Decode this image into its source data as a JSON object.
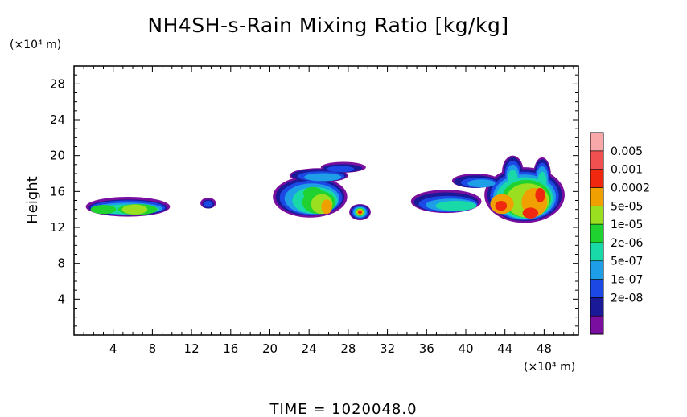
{
  "chart_data": {
    "type": "heatmap",
    "title": "NH4SH-s-Rain Mixing Ratio [kg/kg]",
    "xlabel": "",
    "ylabel": "Height",
    "x_unit": "(×10⁴ m)",
    "y_unit": "(×10⁴ m)",
    "xlim": [
      0,
      51.5
    ],
    "ylim": [
      0,
      30
    ],
    "x_ticks": [
      "4",
      "8",
      "12",
      "16",
      "20",
      "24",
      "28",
      "32",
      "36",
      "40",
      "44",
      "48"
    ],
    "y_ticks": [
      "4",
      "8",
      "12",
      "16",
      "20",
      "24",
      "28"
    ],
    "x_tick_values": [
      4,
      8,
      12,
      16,
      20,
      24,
      28,
      32,
      36,
      40,
      44,
      48
    ],
    "y_tick_values": [
      4,
      8,
      12,
      16,
      20,
      24,
      28
    ],
    "colorbar": {
      "labels": [
        "0.005",
        "0.001",
        "0.0002",
        "5e-05",
        "1e-05",
        "2e-06",
        "5e-07",
        "1e-07",
        "2e-08"
      ],
      "colors": [
        "#7a0e9e",
        "#1a1a99",
        "#1c49e6",
        "#1f9ee8",
        "#19d9a9",
        "#20d230",
        "#9be020",
        "#f0a000",
        "#f02810",
        "#f05050",
        "#f8a8a8"
      ]
    },
    "cloud_levels": [
      {
        "level": 0,
        "ellipses": [
          [
            5.5,
            14.3,
            4.3,
            1.1
          ],
          [
            13.7,
            14.7,
            0.8,
            0.6
          ],
          [
            24.1,
            15.4,
            3.8,
            2.3
          ],
          [
            25.0,
            17.8,
            3.0,
            0.8
          ],
          [
            27.5,
            18.7,
            2.3,
            0.6
          ],
          [
            29.2,
            13.7,
            1.1,
            0.9
          ],
          [
            38.0,
            14.9,
            3.6,
            1.3
          ],
          [
            46.0,
            15.6,
            4.1,
            3.1
          ],
          [
            41.0,
            17.2,
            2.4,
            0.8
          ],
          [
            44.8,
            18.2,
            1.1,
            1.8
          ],
          [
            47.8,
            17.8,
            0.9,
            2.0
          ]
        ]
      },
      {
        "level": 1,
        "ellipses": [
          [
            5.5,
            14.2,
            4.0,
            0.9
          ],
          [
            13.7,
            14.6,
            0.6,
            0.5
          ],
          [
            24.1,
            15.4,
            3.5,
            2.1
          ],
          [
            25.0,
            17.8,
            2.8,
            0.7
          ],
          [
            27.4,
            18.6,
            2.0,
            0.45
          ],
          [
            29.2,
            13.7,
            1.0,
            0.8
          ],
          [
            38.0,
            14.8,
            3.3,
            1.1
          ],
          [
            46.0,
            15.6,
            3.8,
            2.9
          ],
          [
            41.0,
            17.1,
            2.2,
            0.7
          ],
          [
            44.8,
            18.2,
            0.95,
            1.6
          ],
          [
            47.8,
            17.8,
            0.8,
            1.8
          ]
        ]
      },
      {
        "level": 2,
        "ellipses": [
          [
            5.5,
            14.2,
            3.8,
            0.8
          ],
          [
            13.7,
            14.6,
            0.45,
            0.35
          ],
          [
            24.2,
            15.3,
            3.2,
            1.9
          ],
          [
            25.2,
            17.7,
            2.4,
            0.55
          ],
          [
            27.2,
            18.5,
            1.4,
            0.35
          ],
          [
            29.2,
            13.7,
            0.85,
            0.7
          ],
          [
            38.2,
            14.6,
            3.0,
            0.9
          ],
          [
            46.0,
            15.5,
            3.5,
            2.7
          ],
          [
            41.3,
            17.0,
            1.8,
            0.55
          ],
          [
            44.8,
            18.0,
            0.8,
            1.4
          ],
          [
            47.8,
            17.6,
            0.7,
            1.6
          ]
        ]
      },
      {
        "level": 3,
        "ellipses": [
          [
            5.5,
            14.1,
            3.5,
            0.65
          ],
          [
            24.3,
            15.2,
            2.8,
            1.7
          ],
          [
            25.4,
            17.6,
            1.9,
            0.45
          ],
          [
            29.2,
            13.7,
            0.7,
            0.6
          ],
          [
            38.5,
            14.5,
            2.6,
            0.7
          ],
          [
            46.0,
            15.4,
            3.2,
            2.5
          ],
          [
            41.6,
            16.9,
            1.4,
            0.45
          ],
          [
            44.8,
            17.8,
            0.65,
            1.2
          ],
          [
            47.8,
            17.4,
            0.6,
            1.4
          ]
        ]
      },
      {
        "level": 4,
        "ellipses": [
          [
            5.5,
            14.0,
            3.2,
            0.55
          ],
          [
            24.6,
            15.0,
            2.3,
            1.5
          ],
          [
            29.2,
            13.7,
            0.55,
            0.5
          ],
          [
            39.0,
            14.4,
            2.1,
            0.55
          ],
          [
            46.0,
            15.3,
            2.9,
            2.3
          ],
          [
            44.8,
            17.5,
            0.5,
            0.9
          ],
          [
            47.8,
            17.1,
            0.45,
            1.1
          ]
        ]
      },
      {
        "level": 5,
        "ellipses": [
          [
            3.0,
            14.0,
            1.3,
            0.5
          ],
          [
            6.5,
            14.0,
            2.0,
            0.6
          ],
          [
            25.0,
            14.8,
            1.7,
            1.3
          ],
          [
            24.4,
            15.8,
            1.0,
            0.7
          ],
          [
            29.2,
            13.7,
            0.45,
            0.45
          ],
          [
            46.2,
            15.2,
            2.5,
            2.1
          ]
        ]
      },
      {
        "level": 6,
        "ellipses": [
          [
            6.2,
            14.0,
            1.3,
            0.55
          ],
          [
            25.3,
            14.6,
            1.1,
            1.1
          ],
          [
            29.2,
            13.7,
            0.38,
            0.38
          ],
          [
            46.3,
            15.0,
            2.2,
            1.9
          ]
        ]
      },
      {
        "level": 7,
        "ellipses": [
          [
            25.8,
            14.3,
            0.55,
            0.8
          ],
          [
            29.2,
            13.7,
            0.3,
            0.3
          ],
          [
            43.7,
            14.6,
            1.2,
            1.1
          ],
          [
            47.0,
            14.8,
            1.3,
            1.6
          ]
        ]
      },
      {
        "level": 8,
        "ellipses": [
          [
            29.2,
            13.7,
            0.2,
            0.2
          ],
          [
            43.6,
            14.4,
            0.6,
            0.55
          ],
          [
            46.6,
            13.6,
            0.8,
            0.6
          ],
          [
            47.6,
            15.6,
            0.5,
            0.8
          ]
        ]
      }
    ]
  },
  "footer": {
    "time_label": "TIME = 1020048.0"
  }
}
